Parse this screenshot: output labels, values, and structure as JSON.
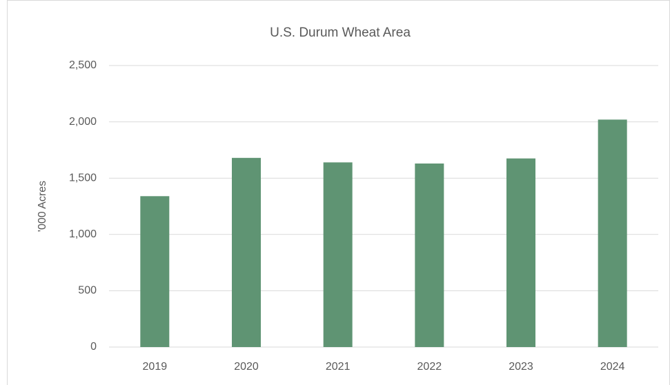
{
  "chart_data": {
    "type": "bar",
    "title": "U.S. Durum Wheat Area",
    "y_label": "'000 Acres",
    "categories": [
      "2019",
      "2020",
      "2021",
      "2022",
      "2023",
      "2024"
    ],
    "values": [
      1340,
      1680,
      1640,
      1630,
      1675,
      2020
    ],
    "color": "#5f9473",
    "ylim": [
      0,
      2500
    ],
    "yticks": [
      0,
      500,
      {
        "value": 1000,
        "label": "1,000"
      },
      {
        "value": 1500,
        "label": "1,500"
      },
      {
        "value": 2000,
        "label": "2,000"
      },
      {
        "value": 2500,
        "label": "2,500"
      }
    ],
    "grid": true
  }
}
